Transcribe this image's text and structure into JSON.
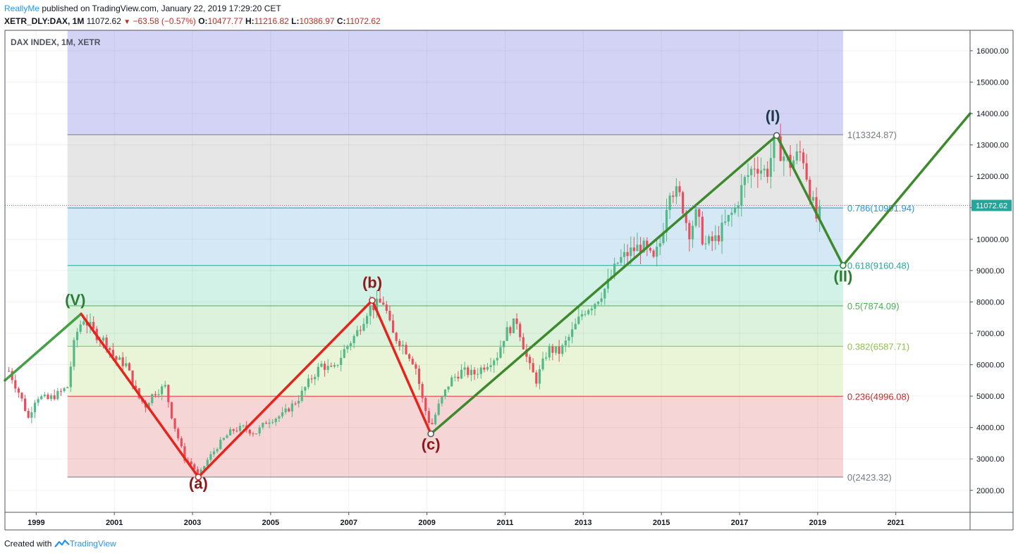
{
  "header": {
    "author": "ReallyMe",
    "published_text": "published on TradingView.com, January 22, 2019 17:29:20 CET",
    "symbol": "XETR_DLY:DAX, 1M",
    "last": "11072.62",
    "change": "−63.58 (−0.57%)",
    "open_label": "O:",
    "open": "10477.77",
    "high_label": "H:",
    "high": "11216.82",
    "low_label": "L:",
    "low": "10386.97",
    "close_label": "C:",
    "close": "11072.62"
  },
  "footer": {
    "created_with": "Created with",
    "brand": "TradingView"
  },
  "chart_data": {
    "type": "candlestick",
    "title": "DAX INDEX, 1M, XETR",
    "y_range": [
      1300,
      16650
    ],
    "x_range": [
      1998.2,
      2022.9
    ],
    "y_ticks": [
      "2000.00",
      "3000.00",
      "4000.00",
      "5000.00",
      "6000.00",
      "7000.00",
      "8000.00",
      "9000.00",
      "10000.00",
      "11000.00",
      "12000.00",
      "13000.00",
      "14000.00",
      "15000.00",
      "16000.00"
    ],
    "x_ticks": [
      "1999",
      "2001",
      "2003",
      "2005",
      "2007",
      "2009",
      "2011",
      "2013",
      "2015",
      "2017",
      "2019",
      "2021"
    ],
    "last_price_label": "11072.62",
    "last_price": 11072.62,
    "fib_levels": [
      {
        "ratio": 1.0,
        "label": "1(13324.87)",
        "value": 13324.87,
        "line_color": "#787b86",
        "text_color": "#787b86"
      },
      {
        "ratio": 0.786,
        "label": "0.786(10991.94)",
        "value": 10991.94,
        "line_color": "#2196f3",
        "text_color": "#2196f3"
      },
      {
        "ratio": 0.618,
        "label": "0.618(9160.48)",
        "value": 9160.48,
        "line_color": "#26a69a",
        "text_color": "#26a69a"
      },
      {
        "ratio": 0.5,
        "label": "0.5(7874.09)",
        "value": 7874.09,
        "line_color": "#4caf50",
        "text_color": "#4caf50"
      },
      {
        "ratio": 0.382,
        "label": "0.382(6587.71)",
        "value": 6587.71,
        "line_color": "#8bc34a",
        "text_color": "#8bc34a"
      },
      {
        "ratio": 0.236,
        "label": "0.236(4996.08)",
        "value": 4996.08,
        "line_color": "#e53935",
        "text_color": "#c62828"
      },
      {
        "ratio": 0,
        "label": "0(2423.32)",
        "value": 2423.32,
        "line_color": "#787b86",
        "text_color": "#787b86"
      }
    ],
    "fib_zones": [
      {
        "from": 13324.87,
        "to": 16650,
        "color": "#d3d3f5"
      },
      {
        "from": 10991.94,
        "to": 13324.87,
        "color": "#e6e6e6"
      },
      {
        "from": 9160.48,
        "to": 10991.94,
        "color": "#d5e8f5"
      },
      {
        "from": 7874.09,
        "to": 9160.48,
        "color": "#d2f2e7"
      },
      {
        "from": 6587.71,
        "to": 7874.09,
        "color": "#dcf2dc"
      },
      {
        "from": 4996.08,
        "to": 6587.71,
        "color": "#eaf5d8"
      },
      {
        "from": 2423.32,
        "to": 4996.08,
        "color": "#f5d5d5"
      }
    ],
    "fib_x_range": [
      1999.8,
      2019.65
    ],
    "waves": {
      "green": [
        [
          1998.2,
          5500
        ],
        [
          2000.15,
          7620
        ]
      ],
      "red": [
        [
          2000.15,
          7620
        ],
        [
          2003.15,
          2423
        ],
        [
          2007.6,
          8050
        ],
        [
          2009.1,
          3800
        ]
      ],
      "green2": [
        [
          2009.1,
          3800
        ],
        [
          2017.95,
          13300
        ],
        [
          2019.65,
          9160
        ],
        [
          2022.9,
          14000
        ]
      ]
    },
    "wave_labels": [
      {
        "text": "(V)",
        "x": 2000.0,
        "y": 7900,
        "color": "#2e7d32"
      },
      {
        "text": "(a)",
        "x": 2003.15,
        "y": 2050,
        "color": "#8b1a1a"
      },
      {
        "text": "(b)",
        "x": 2007.6,
        "y": 8450,
        "color": "#8b1a1a"
      },
      {
        "text": "(c)",
        "x": 2009.1,
        "y": 3300,
        "color": "#8b1a1a"
      },
      {
        "text": "(I)",
        "x": 2017.85,
        "y": 13750,
        "color": "#1e3a4a"
      },
      {
        "text": "(II)",
        "x": 2019.65,
        "y": 8650,
        "color": "#2e7d32"
      }
    ],
    "anchors": [
      {
        "x": 2003.15,
        "y": 2423,
        "color": "#c62828"
      },
      {
        "x": 2007.6,
        "y": 8050,
        "color": "#c62828"
      },
      {
        "x": 2009.1,
        "y": 3800,
        "color": "#555"
      },
      {
        "x": 2017.95,
        "y": 13300,
        "color": "#555"
      },
      {
        "x": 2019.65,
        "y": 9160,
        "color": "#2e7d32"
      }
    ],
    "price_path": [
      [
        1998.3,
        5800
      ],
      [
        1998.6,
        5000
      ],
      [
        1998.8,
        4300
      ],
      [
        1999.0,
        5000
      ],
      [
        1999.3,
        4900
      ],
      [
        1999.6,
        5100
      ],
      [
        1999.8,
        5300
      ],
      [
        2000.0,
        6900
      ],
      [
        2000.2,
        7500
      ],
      [
        2000.5,
        7000
      ],
      [
        2000.8,
        6700
      ],
      [
        2001.0,
        6200
      ],
      [
        2001.3,
        6000
      ],
      [
        2001.6,
        5000
      ],
      [
        2001.8,
        4700
      ],
      [
        2002.0,
        5100
      ],
      [
        2002.3,
        5300
      ],
      [
        2002.5,
        4200
      ],
      [
        2002.8,
        3000
      ],
      [
        2003.0,
        2800
      ],
      [
        2003.15,
        2450
      ],
      [
        2003.4,
        3000
      ],
      [
        2003.7,
        3500
      ],
      [
        2004.0,
        3900
      ],
      [
        2004.3,
        4000
      ],
      [
        2004.6,
        3800
      ],
      [
        2004.9,
        4200
      ],
      [
        2005.3,
        4400
      ],
      [
        2005.7,
        4900
      ],
      [
        2006.0,
        5500
      ],
      [
        2006.3,
        6000
      ],
      [
        2006.6,
        5800
      ],
      [
        2006.9,
        6500
      ],
      [
        2007.2,
        7000
      ],
      [
        2007.5,
        7800
      ],
      [
        2007.7,
        7900
      ],
      [
        2007.9,
        8000
      ],
      [
        2008.1,
        7000
      ],
      [
        2008.4,
        6600
      ],
      [
        2008.7,
        6000
      ],
      [
        2008.9,
        4800
      ],
      [
        2009.1,
        4000
      ],
      [
        2009.3,
        4700
      ],
      [
        2009.6,
        5500
      ],
      [
        2009.9,
        5800
      ],
      [
        2010.2,
        5700
      ],
      [
        2010.5,
        6000
      ],
      [
        2010.8,
        6300
      ],
      [
        2011.0,
        7000
      ],
      [
        2011.3,
        7400
      ],
      [
        2011.6,
        6000
      ],
      [
        2011.8,
        5500
      ],
      [
        2012.1,
        6500
      ],
      [
        2012.4,
        6400
      ],
      [
        2012.7,
        7000
      ],
      [
        2013.0,
        7700
      ],
      [
        2013.3,
        8000
      ],
      [
        2013.6,
        8500
      ],
      [
        2013.9,
        9300
      ],
      [
        2014.2,
        9600
      ],
      [
        2014.5,
        9800
      ],
      [
        2014.8,
        9300
      ],
      [
        2015.0,
        10000
      ],
      [
        2015.2,
        11700
      ],
      [
        2015.5,
        11300
      ],
      [
        2015.7,
        10200
      ],
      [
        2015.9,
        10800
      ],
      [
        2016.1,
        9800
      ],
      [
        2016.4,
        10000
      ],
      [
        2016.6,
        10400
      ],
      [
        2016.9,
        11000
      ],
      [
        2017.1,
        11800
      ],
      [
        2017.4,
        12400
      ],
      [
        2017.7,
        12100
      ],
      [
        2017.9,
        13100
      ],
      [
        2018.1,
        12700
      ],
      [
        2018.3,
        12400
      ],
      [
        2018.6,
        12800
      ],
      [
        2018.8,
        11500
      ],
      [
        2019.0,
        10500
      ],
      [
        2019.1,
        11072
      ]
    ]
  }
}
